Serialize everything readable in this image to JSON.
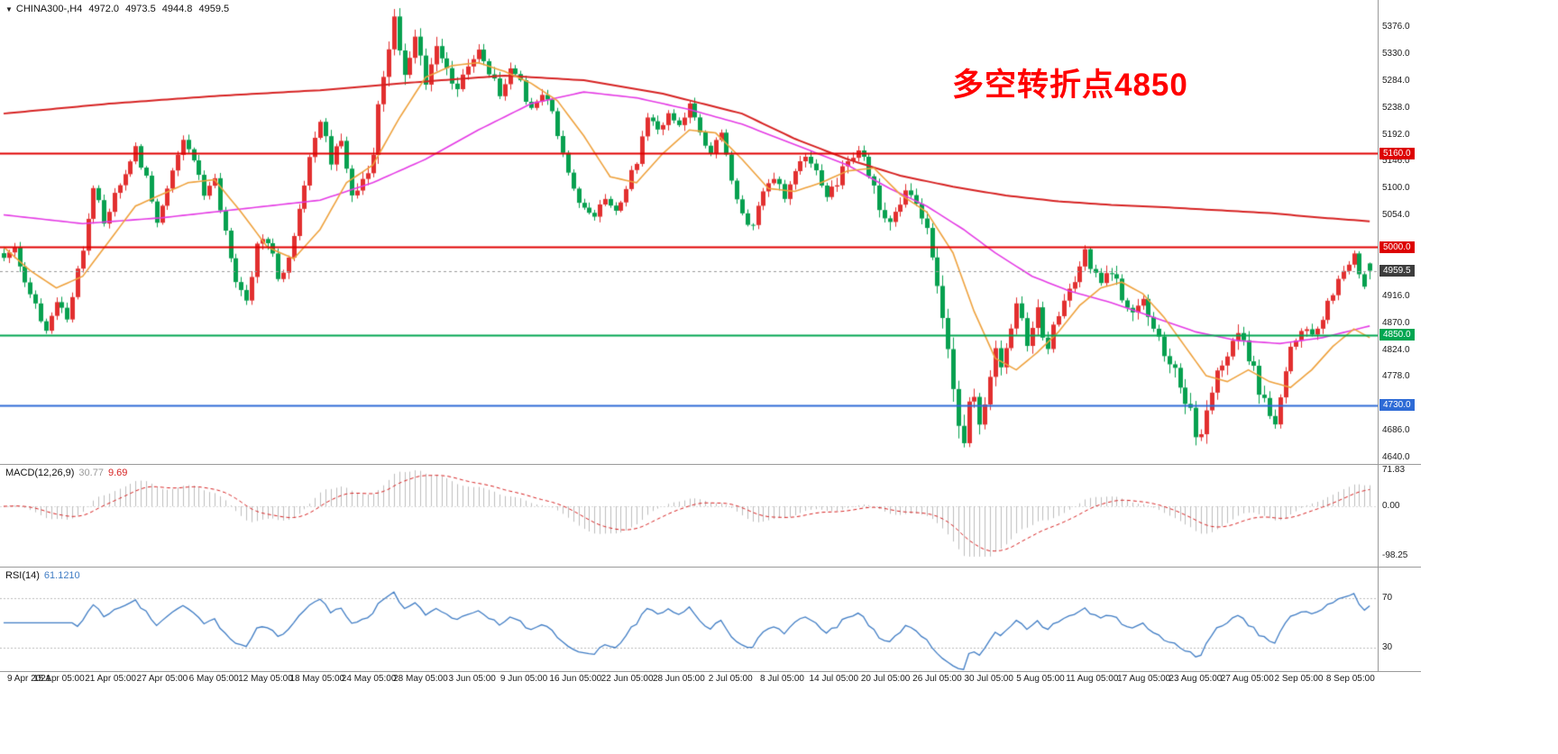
{
  "quote_bar": {
    "symbol_timeframe": "CHINA300-,H4",
    "open": "4972.0",
    "high": "4973.5",
    "low": "4944.8",
    "close": "4959.5"
  },
  "annotation": {
    "text": "多空转折点4850",
    "color": "#ff0000"
  },
  "price_axis": {
    "ticks": [
      5376.0,
      5330.0,
      5284.0,
      5238.0,
      5192.0,
      5146.0,
      5100.0,
      5054.0,
      4916.0,
      4870.0,
      4824.0,
      4778.0,
      4686.0,
      4640.0
    ],
    "badges": [
      {
        "value": 5160.0,
        "label": "5160.0",
        "color": "#dd0000",
        "name": "resistance-5160"
      },
      {
        "value": 5000.0,
        "label": "5000.0",
        "color": "#dd0000",
        "name": "resistance-5000"
      },
      {
        "value": 4959.5,
        "label": "4959.5",
        "color": "#3d3d3d",
        "name": "current-price"
      },
      {
        "value": 4850.0,
        "label": "4850.0",
        "color": "#00a651",
        "name": "pivot-4850"
      },
      {
        "value": 4730.0,
        "label": "4730.0",
        "color": "#2e6bd6",
        "name": "support-4730"
      }
    ]
  },
  "time_axis": {
    "labels": [
      "9 Apr 2021",
      "15 Apr 05:00",
      "21 Apr 05:00",
      "27 Apr 05:00",
      "6 May 05:00",
      "12 May 05:00",
      "18 May 05:00",
      "24 May 05:00",
      "28 May 05:00",
      "3 Jun 05:00",
      "9 Jun 05:00",
      "16 Jun 05:00",
      "22 Jun 05:00",
      "28 Jun 05:00",
      "2 Jul 05:00",
      "8 Jul 05:00",
      "14 Jul 05:00",
      "20 Jul 05:00",
      "26 Jul 05:00",
      "30 Jul 05:00",
      "5 Aug 05:00",
      "11 Aug 05:00",
      "17 Aug 05:00",
      "23 Aug 05:00",
      "27 Aug 05:00",
      "2 Sep 05:00",
      "8 Sep 05:00"
    ]
  },
  "macd": {
    "label": "MACD(12,26,9)",
    "main_value": "30.77",
    "signal_value": "9.69",
    "axis": [
      {
        "value": 71.83,
        "label": "71.83"
      },
      {
        "value": 0,
        "label": "0.00"
      },
      {
        "value": -98.25,
        "label": "-98.25"
      }
    ]
  },
  "rsi": {
    "label": "RSI(14)",
    "value": "61.1210",
    "levels": [
      70,
      30
    ]
  },
  "chart_data": {
    "type": "candlestick",
    "title": "CHINA300- H4 chart with MACD(12,26,9) and RSI(14)",
    "symbol": "CHINA300-",
    "timeframe": "H4",
    "candle_count": 260,
    "x_range": [
      "9 Apr 2021",
      "8 Sep 2021"
    ],
    "price_range": [
      4640,
      5390
    ],
    "grid": false,
    "colors": {
      "up": "#e22f2f",
      "down": "#07a04f",
      "ma_slow": "#d62222",
      "ma_mid": "#e43ae4",
      "ma_fast": "#eea13c",
      "macd_hist": "#bdbdbd",
      "macd_signal": "#d62222",
      "rsi_line": "#3f7cc4",
      "rsi_levels": "#bbbbbb"
    },
    "last_candle": {
      "open": 4972.0,
      "high": 4973.5,
      "low": 4944.8,
      "close": 4959.5
    },
    "price_path": [
      [
        0,
        4975
      ],
      [
        2,
        5000
      ],
      [
        5,
        4915
      ],
      [
        8,
        4860
      ],
      [
        10,
        4905
      ],
      [
        12,
        4880
      ],
      [
        15,
        5000
      ],
      [
        17,
        5105
      ],
      [
        19,
        5040
      ],
      [
        22,
        5110
      ],
      [
        25,
        5165
      ],
      [
        27,
        5120
      ],
      [
        29,
        5035
      ],
      [
        32,
        5130
      ],
      [
        34,
        5180
      ],
      [
        36,
        5150
      ],
      [
        38,
        5085
      ],
      [
        40,
        5110
      ],
      [
        42,
        5030
      ],
      [
        44,
        4945
      ],
      [
        46,
        4905
      ],
      [
        48,
        5000
      ],
      [
        50,
        5010
      ],
      [
        52,
        4950
      ],
      [
        54,
        4975
      ],
      [
        56,
        5060
      ],
      [
        58,
        5160
      ],
      [
        60,
        5215
      ],
      [
        62,
        5150
      ],
      [
        64,
        5180
      ],
      [
        66,
        5085
      ],
      [
        68,
        5110
      ],
      [
        70,
        5160
      ],
      [
        71,
        5240
      ],
      [
        72,
        5300
      ],
      [
        73,
        5330
      ],
      [
        74,
        5380
      ],
      [
        75,
        5340
      ],
      [
        76,
        5290
      ],
      [
        78,
        5355
      ],
      [
        80,
        5275
      ],
      [
        82,
        5340
      ],
      [
        84,
        5300
      ],
      [
        86,
        5270
      ],
      [
        88,
        5310
      ],
      [
        90,
        5330
      ],
      [
        92,
        5300
      ],
      [
        94,
        5260
      ],
      [
        96,
        5300
      ],
      [
        98,
        5280
      ],
      [
        100,
        5230
      ],
      [
        102,
        5260
      ],
      [
        104,
        5230
      ],
      [
        106,
        5160
      ],
      [
        108,
        5100
      ],
      [
        110,
        5060
      ],
      [
        112,
        5050
      ],
      [
        114,
        5080
      ],
      [
        116,
        5060
      ],
      [
        118,
        5100
      ],
      [
        120,
        5150
      ],
      [
        122,
        5220
      ],
      [
        124,
        5200
      ],
      [
        126,
        5230
      ],
      [
        128,
        5210
      ],
      [
        130,
        5240
      ],
      [
        132,
        5190
      ],
      [
        134,
        5160
      ],
      [
        136,
        5190
      ],
      [
        138,
        5120
      ],
      [
        140,
        5050
      ],
      [
        142,
        5040
      ],
      [
        144,
        5090
      ],
      [
        146,
        5120
      ],
      [
        148,
        5090
      ],
      [
        150,
        5130
      ],
      [
        152,
        5160
      ],
      [
        154,
        5130
      ],
      [
        156,
        5080
      ],
      [
        158,
        5110
      ],
      [
        160,
        5150
      ],
      [
        162,
        5170
      ],
      [
        164,
        5130
      ],
      [
        166,
        5070
      ],
      [
        168,
        5040
      ],
      [
        170,
        5070
      ],
      [
        172,
        5100
      ],
      [
        174,
        5060
      ],
      [
        176,
        4990
      ],
      [
        177,
        4940
      ],
      [
        178,
        4870
      ],
      [
        179,
        4820
      ],
      [
        180,
        4750
      ],
      [
        181,
        4700
      ],
      [
        182,
        4660
      ],
      [
        183,
        4720
      ],
      [
        184,
        4760
      ],
      [
        185,
        4700
      ],
      [
        186,
        4730
      ],
      [
        187,
        4780
      ],
      [
        188,
        4830
      ],
      [
        189,
        4790
      ],
      [
        190,
        4820
      ],
      [
        191,
        4860
      ],
      [
        192,
        4900
      ],
      [
        193,
        4870
      ],
      [
        194,
        4830
      ],
      [
        195,
        4860
      ],
      [
        196,
        4890
      ],
      [
        197,
        4850
      ],
      [
        198,
        4820
      ],
      [
        199,
        4860
      ],
      [
        200,
        4890
      ],
      [
        202,
        4920
      ],
      [
        204,
        4960
      ],
      [
        205,
        4990
      ],
      [
        206,
        4970
      ],
      [
        208,
        4940
      ],
      [
        210,
        4950
      ],
      [
        212,
        4920
      ],
      [
        214,
        4880
      ],
      [
        216,
        4900
      ],
      [
        218,
        4860
      ],
      [
        220,
        4820
      ],
      [
        222,
        4780
      ],
      [
        224,
        4740
      ],
      [
        226,
        4690
      ],
      [
        227,
        4670
      ],
      [
        228,
        4720
      ],
      [
        230,
        4780
      ],
      [
        232,
        4820
      ],
      [
        234,
        4850
      ],
      [
        236,
        4810
      ],
      [
        238,
        4760
      ],
      [
        240,
        4710
      ],
      [
        241,
        4700
      ],
      [
        242,
        4750
      ],
      [
        244,
        4820
      ],
      [
        246,
        4860
      ],
      [
        248,
        4850
      ],
      [
        250,
        4880
      ],
      [
        252,
        4920
      ],
      [
        254,
        4960
      ],
      [
        256,
        4990
      ],
      [
        257,
        4950
      ],
      [
        258,
        4930
      ],
      [
        259,
        4959.5
      ]
    ],
    "volatility": [
      [
        0,
        10
      ],
      [
        40,
        10
      ],
      [
        70,
        14
      ],
      [
        74,
        20
      ],
      [
        100,
        10
      ],
      [
        140,
        10
      ],
      [
        176,
        16
      ],
      [
        182,
        26
      ],
      [
        186,
        18
      ],
      [
        200,
        12
      ],
      [
        226,
        20
      ],
      [
        240,
        16
      ],
      [
        252,
        10
      ],
      [
        259,
        8
      ]
    ],
    "levels": [
      {
        "price": 5160.0,
        "color": "#e00000",
        "width": 2,
        "style": "solid",
        "role": "resistance"
      },
      {
        "price": 5000.0,
        "color": "#e00000",
        "width": 2,
        "style": "solid",
        "role": "resistance"
      },
      {
        "price": 4850.0,
        "color": "#00a651",
        "width": 2,
        "style": "solid",
        "role": "pivot"
      },
      {
        "price": 4730.0,
        "color": "#2e6bd6",
        "width": 2,
        "style": "solid",
        "role": "support"
      },
      {
        "price": 4959.5,
        "color": "#999999",
        "width": 1,
        "style": "dashed",
        "role": "current-price"
      }
    ],
    "overlays": [
      {
        "name": "ma-slow",
        "color": "#d62222",
        "width": 2,
        "points": [
          [
            0,
            5228
          ],
          [
            20,
            5245
          ],
          [
            40,
            5258
          ],
          [
            60,
            5268
          ],
          [
            80,
            5283
          ],
          [
            95,
            5293
          ],
          [
            110,
            5285
          ],
          [
            125,
            5262
          ],
          [
            140,
            5228
          ],
          [
            150,
            5185
          ],
          [
            160,
            5150
          ],
          [
            170,
            5122
          ],
          [
            180,
            5103
          ],
          [
            190,
            5088
          ],
          [
            200,
            5078
          ],
          [
            210,
            5072
          ],
          [
            220,
            5068
          ],
          [
            230,
            5063
          ],
          [
            240,
            5058
          ],
          [
            250,
            5050
          ],
          [
            259,
            5044
          ]
        ]
      },
      {
        "name": "ma-mid",
        "color": "#e43ae4",
        "width": 1.6,
        "points": [
          [
            0,
            5055
          ],
          [
            15,
            5040
          ],
          [
            30,
            5050
          ],
          [
            45,
            5065
          ],
          [
            60,
            5080
          ],
          [
            70,
            5110
          ],
          [
            80,
            5150
          ],
          [
            90,
            5200
          ],
          [
            100,
            5245
          ],
          [
            110,
            5265
          ],
          [
            120,
            5255
          ],
          [
            130,
            5235
          ],
          [
            140,
            5210
          ],
          [
            150,
            5175
          ],
          [
            160,
            5140
          ],
          [
            168,
            5100
          ],
          [
            175,
            5070
          ],
          [
            182,
            5030
          ],
          [
            188,
            4990
          ],
          [
            195,
            4950
          ],
          [
            202,
            4925
          ],
          [
            210,
            4905
          ],
          [
            218,
            4880
          ],
          [
            226,
            4855
          ],
          [
            234,
            4840
          ],
          [
            242,
            4835
          ],
          [
            250,
            4845
          ],
          [
            259,
            4865
          ]
        ]
      },
      {
        "name": "ma-fast",
        "color": "#eea13c",
        "width": 1.6,
        "points": [
          [
            0,
            5000
          ],
          [
            5,
            4960
          ],
          [
            10,
            4930
          ],
          [
            15,
            4950
          ],
          [
            20,
            5010
          ],
          [
            25,
            5070
          ],
          [
            30,
            5090
          ],
          [
            35,
            5110
          ],
          [
            40,
            5115
          ],
          [
            45,
            5060
          ],
          [
            50,
            5000
          ],
          [
            55,
            4980
          ],
          [
            60,
            5030
          ],
          [
            65,
            5110
          ],
          [
            70,
            5140
          ],
          [
            75,
            5220
          ],
          [
            80,
            5290
          ],
          [
            85,
            5310
          ],
          [
            90,
            5315
          ],
          [
            95,
            5300
          ],
          [
            100,
            5280
          ],
          [
            105,
            5250
          ],
          [
            110,
            5190
          ],
          [
            115,
            5120
          ],
          [
            120,
            5110
          ],
          [
            125,
            5160
          ],
          [
            130,
            5200
          ],
          [
            135,
            5195
          ],
          [
            140,
            5150
          ],
          [
            145,
            5100
          ],
          [
            150,
            5095
          ],
          [
            155,
            5110
          ],
          [
            160,
            5130
          ],
          [
            165,
            5135
          ],
          [
            170,
            5090
          ],
          [
            175,
            5060
          ],
          [
            180,
            4990
          ],
          [
            184,
            4890
          ],
          [
            188,
            4810
          ],
          [
            192,
            4790
          ],
          [
            196,
            4820
          ],
          [
            200,
            4855
          ],
          [
            204,
            4900
          ],
          [
            208,
            4930
          ],
          [
            212,
            4940
          ],
          [
            216,
            4920
          ],
          [
            220,
            4880
          ],
          [
            224,
            4830
          ],
          [
            228,
            4780
          ],
          [
            232,
            4770
          ],
          [
            236,
            4790
          ],
          [
            240,
            4770
          ],
          [
            244,
            4760
          ],
          [
            248,
            4790
          ],
          [
            252,
            4830
          ],
          [
            256,
            4860
          ],
          [
            259,
            4845
          ]
        ]
      }
    ],
    "indicators": [
      {
        "name": "MACD",
        "params": [
          12,
          26,
          9
        ],
        "display_main": 30.77,
        "display_signal": 9.69,
        "axis_labels": [
          71.83,
          0.0,
          -98.25
        ]
      },
      {
        "name": "RSI",
        "params": [
          14
        ],
        "display_value": 61.121,
        "levels": [
          70,
          30
        ]
      }
    ]
  }
}
